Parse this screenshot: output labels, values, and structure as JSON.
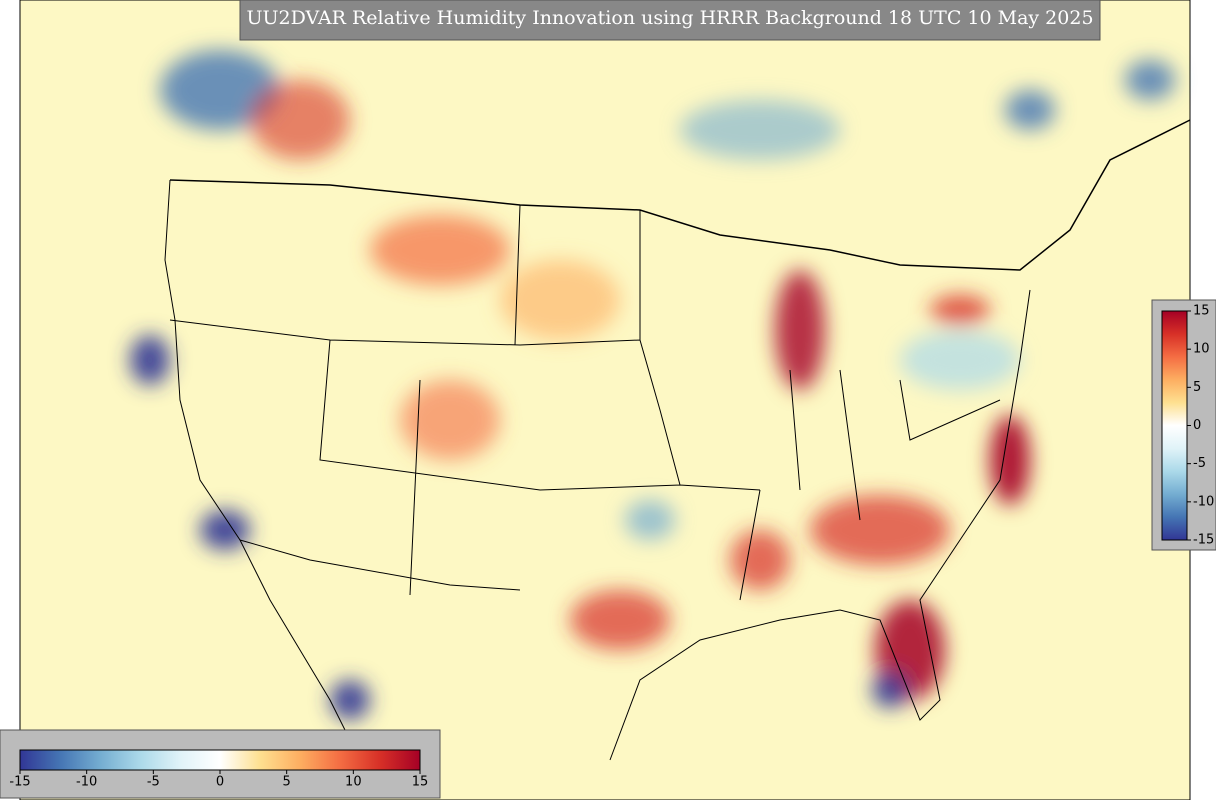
{
  "title": "UU2DVAR Relative Humidity Innovation using HRRR Background 18 UTC 10 May 2025",
  "colorbar_horizontal": {
    "lim": [
      -15,
      15
    ],
    "ticks": [
      -15,
      -10,
      -5,
      0,
      5,
      10,
      15
    ]
  },
  "colorbar_vertical": {
    "lim": [
      -15,
      15
    ],
    "ticks": [
      15,
      10,
      5,
      0,
      -5,
      -10,
      -15
    ]
  },
  "colors": [
    "#313695",
    "#4575b4",
    "#74add1",
    "#abd9e9",
    "#e0f3f8",
    "#ffffff",
    "#fee090",
    "#fdae61",
    "#f46d43",
    "#d73027",
    "#a50026"
  ]
}
